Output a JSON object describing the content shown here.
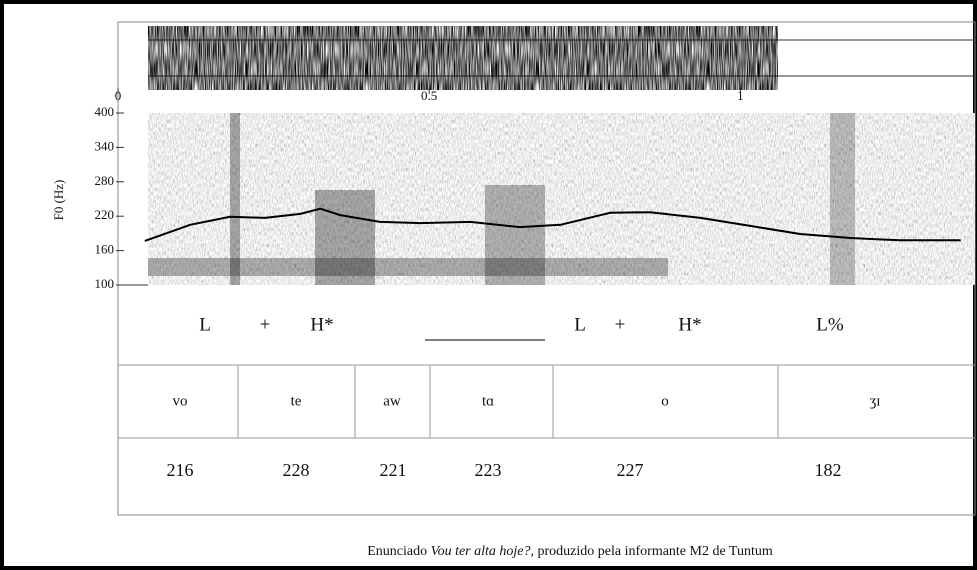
{
  "chart_data": {
    "type": "line",
    "ylabel": "F0 (Hz)",
    "color": "#000000",
    "x": [
      0.043,
      0.116,
      0.18,
      0.236,
      0.293,
      0.325,
      0.357,
      0.421,
      0.486,
      0.566,
      0.646,
      0.711,
      0.791,
      0.855,
      0.936,
      1.016,
      1.096,
      1.177,
      1.257,
      1.354
    ],
    "values": [
      177,
      205,
      219,
      217,
      224,
      233,
      222,
      210,
      208,
      210,
      201,
      205,
      226,
      227,
      217,
      203,
      189,
      182,
      178,
      178
    ],
    "xlim": [
      0,
      1.377
    ],
    "xticks": [
      0,
      0.5,
      1
    ],
    "ylim": [
      100,
      400
    ],
    "yticks": [
      100,
      160,
      220,
      280,
      340,
      400
    ]
  },
  "tones": [
    "L",
    "+",
    "H*",
    "L",
    "+",
    "H*",
    "L%"
  ],
  "syllables": [
    "vo",
    "te",
    "aw",
    "tɑ",
    "o",
    "ʒɪ"
  ],
  "f0_labels": [
    216,
    228,
    221,
    223,
    227,
    182
  ],
  "caption": [
    "Enunciado ",
    "Vou ter alta hoje?",
    ", produzido pela informante M2 de Tuntum"
  ]
}
